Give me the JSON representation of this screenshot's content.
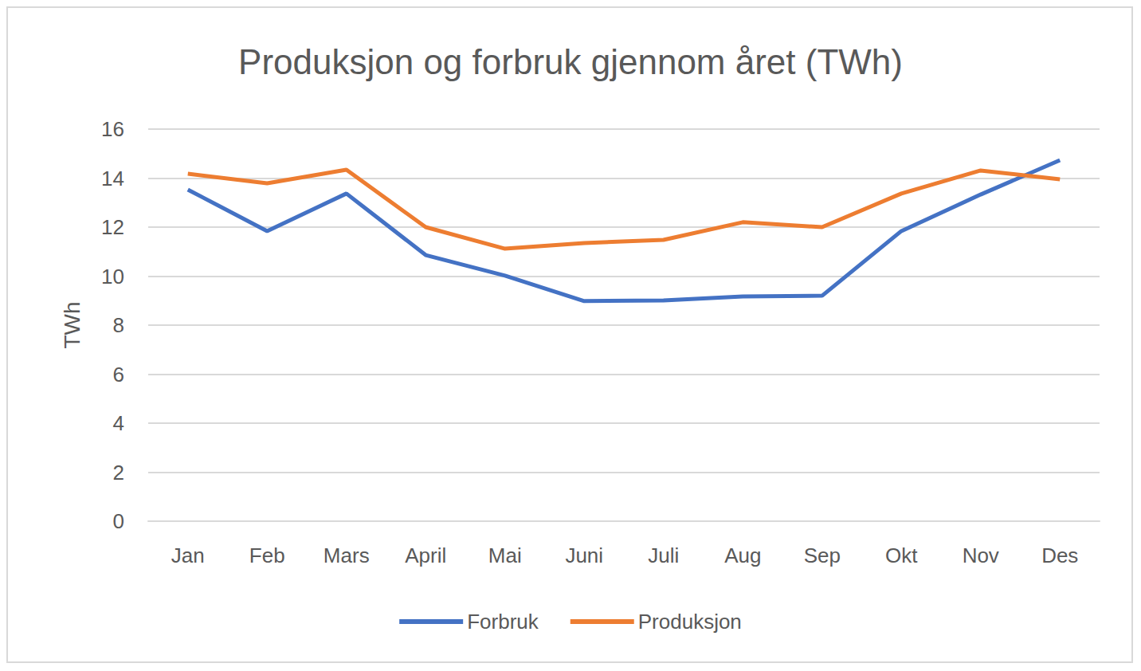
{
  "chart_data": {
    "type": "line",
    "title": "Produksjon og forbruk gjennom året (TWh)",
    "y_label": "TWh",
    "categories": [
      "Jan",
      "Feb",
      "Mars",
      "April",
      "Mai",
      "Juni",
      "Juli",
      "Aug",
      "Sep",
      "Okt",
      "Nov",
      "Des"
    ],
    "series": [
      {
        "name": "Forbruk",
        "color": "#4472c4",
        "values": [
          13.53,
          11.84,
          13.37,
          10.86,
          10.02,
          8.98,
          9.01,
          9.17,
          9.2,
          11.84,
          13.33,
          14.73
        ]
      },
      {
        "name": "Produksjon",
        "color": "#ed7d31",
        "values": [
          14.18,
          13.79,
          14.34,
          12.0,
          11.12,
          11.35,
          11.48,
          12.2,
          12.0,
          13.37,
          14.31,
          13.95
        ]
      }
    ],
    "ylim": [
      0,
      16
    ],
    "yticks": [
      0,
      2,
      4,
      6,
      8,
      10,
      12,
      14,
      16
    ],
    "grid": true,
    "legend": "bottom"
  }
}
